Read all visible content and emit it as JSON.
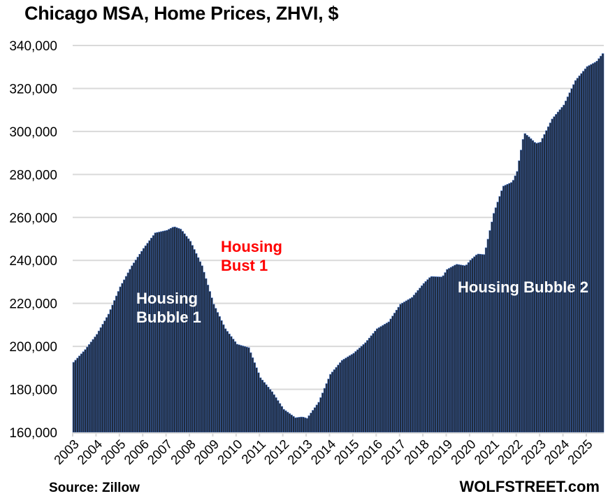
{
  "chart_data": {
    "type": "bar",
    "title": "Chicago MSA, Home Prices, ZHVI, $",
    "xlabel": "",
    "ylabel": "",
    "ylim": [
      160000,
      340000
    ],
    "yticks": [
      160000,
      180000,
      200000,
      220000,
      240000,
      260000,
      280000,
      300000,
      320000,
      340000
    ],
    "ytick_labels": [
      "160,000",
      "180,000",
      "200,000",
      "220,000",
      "240,000",
      "260,000",
      "280,000",
      "300,000",
      "320,000",
      "340,000"
    ],
    "xtick_labels": [
      "2003",
      "2004",
      "2005",
      "2006",
      "2007",
      "2008",
      "2009",
      "2010",
      "2011",
      "2012",
      "2013",
      "2014",
      "2015",
      "2016",
      "2017",
      "2018",
      "2019",
      "2020",
      "2021",
      "2022",
      "2023",
      "2024",
      "2025"
    ],
    "grid": true,
    "frequency": "monthly",
    "start": "2003-01",
    "series": [
      {
        "name": "Chicago MSA ZHVI",
        "color": "#1f2a3c",
        "anchors": [
          [
            2003.0,
            192600
          ],
          [
            2003.5,
            198500
          ],
          [
            2004.0,
            205600
          ],
          [
            2004.5,
            215000
          ],
          [
            2005.0,
            227700
          ],
          [
            2005.5,
            237500
          ],
          [
            2006.0,
            245600
          ],
          [
            2006.5,
            252800
          ],
          [
            2007.0,
            254000
          ],
          [
            2007.3,
            255700
          ],
          [
            2007.6,
            254500
          ],
          [
            2008.0,
            248900
          ],
          [
            2008.5,
            237500
          ],
          [
            2009.0,
            219600
          ],
          [
            2009.5,
            208200
          ],
          [
            2010.0,
            201000
          ],
          [
            2010.5,
            199400
          ],
          [
            2011.0,
            185400
          ],
          [
            2011.5,
            178900
          ],
          [
            2012.0,
            170700
          ],
          [
            2012.5,
            166800
          ],
          [
            2012.8,
            167200
          ],
          [
            2013.0,
            166500
          ],
          [
            2013.5,
            174000
          ],
          [
            2014.0,
            187000
          ],
          [
            2014.5,
            193500
          ],
          [
            2015.0,
            196800
          ],
          [
            2015.5,
            201700
          ],
          [
            2016.0,
            208200
          ],
          [
            2016.5,
            211400
          ],
          [
            2017.0,
            219600
          ],
          [
            2017.5,
            222800
          ],
          [
            2018.0,
            229300
          ],
          [
            2018.3,
            232500
          ],
          [
            2018.8,
            232300
          ],
          [
            2019.0,
            235800
          ],
          [
            2019.4,
            238200
          ],
          [
            2019.8,
            237500
          ],
          [
            2020.0,
            240100
          ],
          [
            2020.3,
            243000
          ],
          [
            2020.6,
            242700
          ],
          [
            2021.0,
            261900
          ],
          [
            2021.4,
            274500
          ],
          [
            2021.8,
            276500
          ],
          [
            2022.0,
            281400
          ],
          [
            2022.3,
            299300
          ],
          [
            2022.5,
            297500
          ],
          [
            2022.8,
            294400
          ],
          [
            2023.0,
            295000
          ],
          [
            2023.5,
            305800
          ],
          [
            2024.0,
            312300
          ],
          [
            2024.5,
            323700
          ],
          [
            2025.0,
            330200
          ],
          [
            2025.4,
            332500
          ],
          [
            2025.7,
            336700
          ]
        ],
        "end": "2025-09"
      }
    ],
    "annotations": [
      {
        "text": [
          "Housing",
          "Bubble 1"
        ],
        "color": "#ffffff"
      },
      {
        "text": [
          "Housing",
          "Bust 1"
        ],
        "color": "#ff0000"
      },
      {
        "text": [
          "Housing Bubble 2"
        ],
        "color": "#ffffff"
      }
    ],
    "source": "Source: Zillow",
    "credit": "WOLFSTREET.com"
  }
}
